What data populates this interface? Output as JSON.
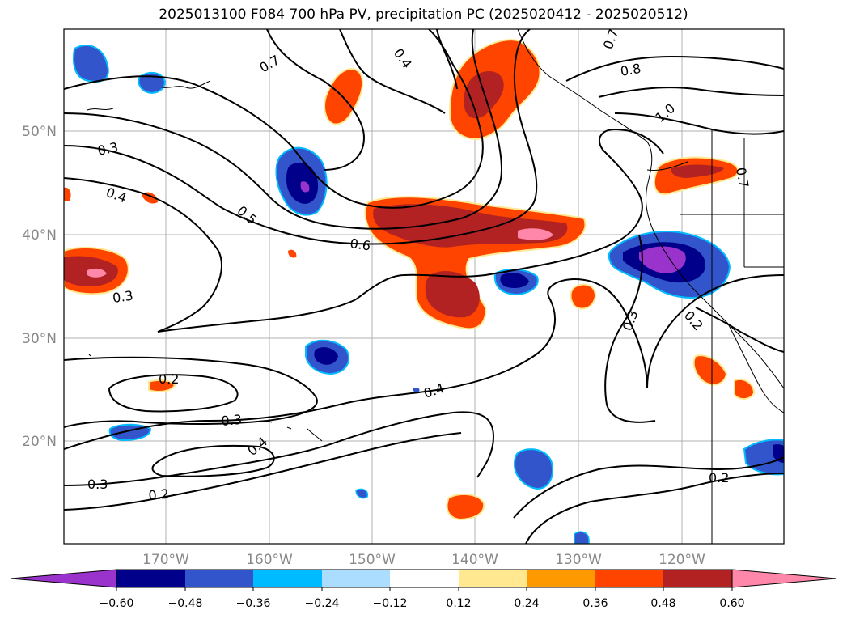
{
  "title": "2025013100 F084 700 hPa PV, precipitation PC (2025020412 - 2025020512)",
  "lon_labels": [
    "170°W",
    "160°W",
    "150°W",
    "140°W",
    "130°W",
    "120°W"
  ],
  "lat_labels": [
    "50°N",
    "40°N",
    "30°N",
    "20°N"
  ],
  "contour_labels": [
    "0.3",
    "0.4",
    "0.5",
    "0.6",
    "0.3",
    "0.2",
    "0.3",
    "0.4",
    "0.4",
    "0.3",
    "0.2",
    "0.2",
    "0.3",
    "0.2",
    "0.4",
    "0.8",
    "1.0",
    "0.7",
    "0.7",
    "0.7"
  ],
  "colorbar": {
    "colors": [
      "#9933cc",
      "#00008b",
      "#3355cc",
      "#00bbff",
      "#aaddff",
      "#ffffff",
      "#ffe88f",
      "#ff9900",
      "#ff4400",
      "#b22222",
      "#ff88aa"
    ],
    "tick_labels": [
      "−0.60",
      "−0.48",
      "−0.36",
      "−0.24",
      "−0.12",
      "0.12",
      "0.24",
      "0.36",
      "0.48",
      "0.60"
    ]
  }
}
